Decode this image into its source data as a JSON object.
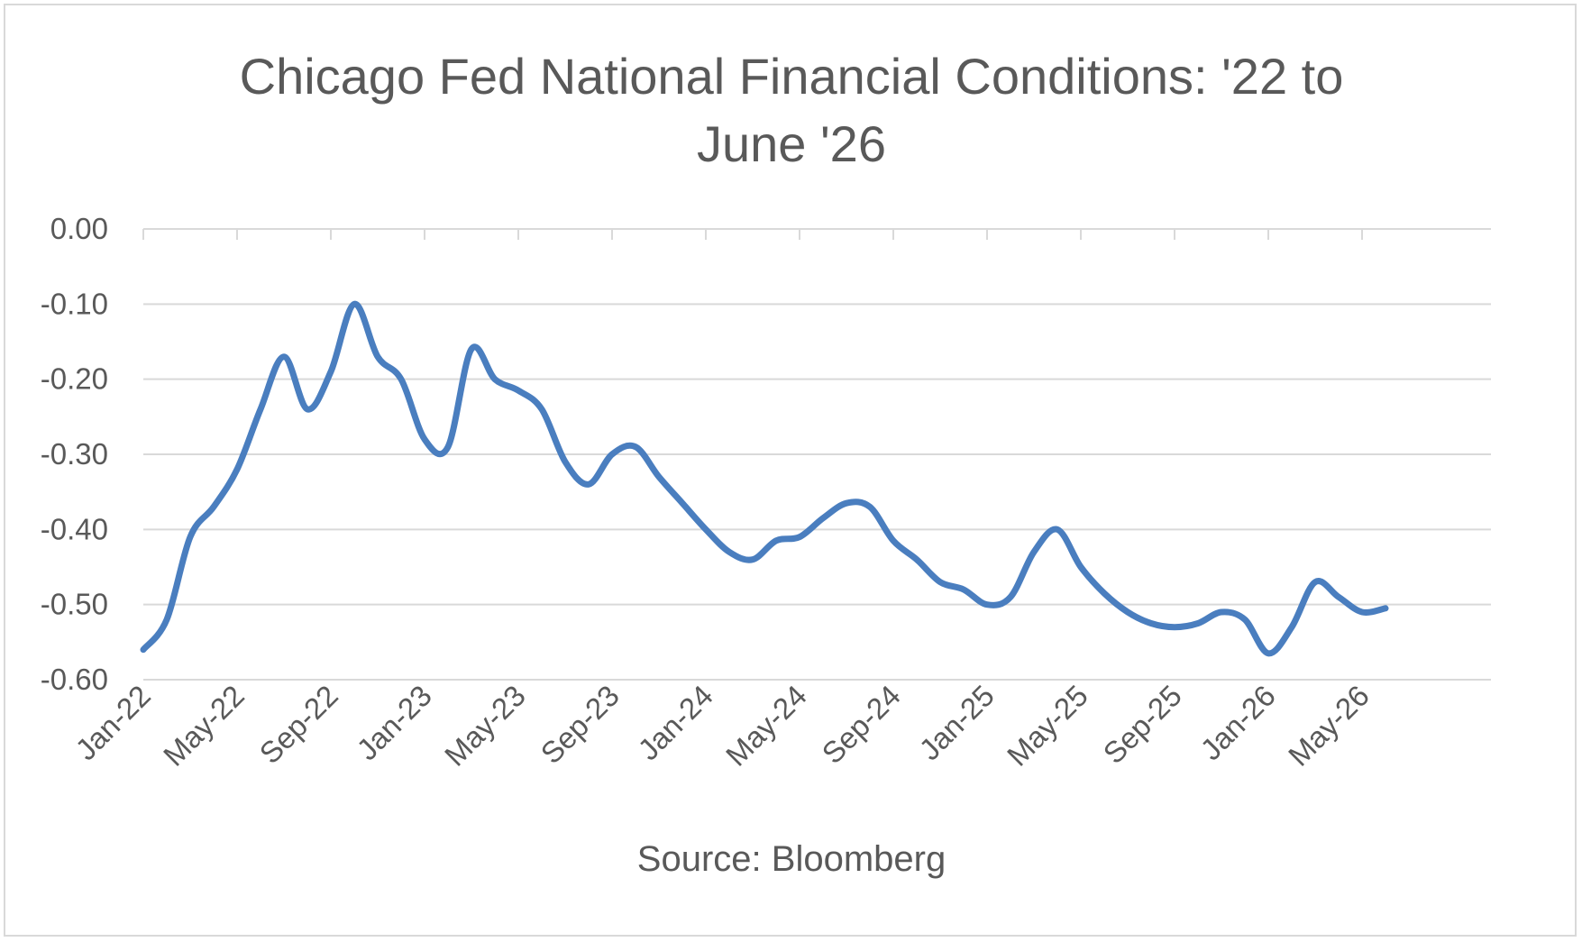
{
  "chart_data": {
    "type": "line",
    "title_lines": [
      "Chicago Fed National Financial Conditions: '22 to",
      "June '26"
    ],
    "xlabel": "Source: Bloomberg",
    "ylabel": "",
    "ylim": [
      -0.6,
      0.0
    ],
    "y_ticks": [
      "0.00",
      "-0.10",
      "-0.20",
      "-0.30",
      "-0.40",
      "-0.50",
      "-0.60"
    ],
    "x_tick_labels": [
      "Jan-22",
      "May-22",
      "Sep-22",
      "Jan-23",
      "May-23",
      "Sep-23",
      "Jan-24",
      "May-24",
      "Sep-24",
      "Jan-25",
      "May-25",
      "Sep-25",
      "Jan-26",
      "May-26"
    ],
    "grid": true,
    "legend": "none",
    "line_color": "#4a7ebf",
    "series": [
      {
        "points": [
          [
            "2022-01",
            -0.56
          ],
          [
            "2022-02",
            -0.52
          ],
          [
            "2022-03",
            -0.41
          ],
          [
            "2022-04",
            -0.37
          ],
          [
            "2022-05",
            -0.32
          ],
          [
            "2022-06",
            -0.24
          ],
          [
            "2022-07",
            -0.17
          ],
          [
            "2022-08",
            -0.24
          ],
          [
            "2022-09",
            -0.19
          ],
          [
            "2022-10",
            -0.1
          ],
          [
            "2022-11",
            -0.17
          ],
          [
            "2022-12",
            -0.2
          ],
          [
            "2023-01",
            -0.28
          ],
          [
            "2023-02",
            -0.29
          ],
          [
            "2023-03",
            -0.16
          ],
          [
            "2023-04",
            -0.2
          ],
          [
            "2023-05",
            -0.215
          ],
          [
            "2023-06",
            -0.24
          ],
          [
            "2023-07",
            -0.31
          ],
          [
            "2023-08",
            -0.34
          ],
          [
            "2023-09",
            -0.3
          ],
          [
            "2023-10",
            -0.29
          ],
          [
            "2023-11",
            -0.33
          ],
          [
            "2023-12",
            -0.365
          ],
          [
            "2024-01",
            -0.4
          ],
          [
            "2024-02",
            -0.43
          ],
          [
            "2024-03",
            -0.44
          ],
          [
            "2024-04",
            -0.415
          ],
          [
            "2024-05",
            -0.41
          ],
          [
            "2024-06",
            -0.385
          ],
          [
            "2024-07",
            -0.365
          ],
          [
            "2024-08",
            -0.37
          ],
          [
            "2024-09",
            -0.415
          ],
          [
            "2024-10",
            -0.44
          ],
          [
            "2024-11",
            -0.47
          ],
          [
            "2024-12",
            -0.48
          ],
          [
            "2025-01",
            -0.5
          ],
          [
            "2025-02",
            -0.49
          ],
          [
            "2025-03",
            -0.43
          ],
          [
            "2025-04",
            -0.4
          ],
          [
            "2025-05",
            -0.45
          ],
          [
            "2025-06",
            -0.485
          ],
          [
            "2025-07",
            -0.51
          ],
          [
            "2025-08",
            -0.525
          ],
          [
            "2025-09",
            -0.53
          ],
          [
            "2025-10",
            -0.525
          ],
          [
            "2025-11",
            -0.51
          ],
          [
            "2025-12",
            -0.52
          ],
          [
            "2026-01",
            -0.565
          ],
          [
            "2026-02",
            -0.53
          ],
          [
            "2026-03",
            -0.47
          ],
          [
            "2026-04",
            -0.49
          ],
          [
            "2026-05",
            -0.51
          ],
          [
            "2026-06",
            -0.505
          ]
        ]
      }
    ]
  }
}
